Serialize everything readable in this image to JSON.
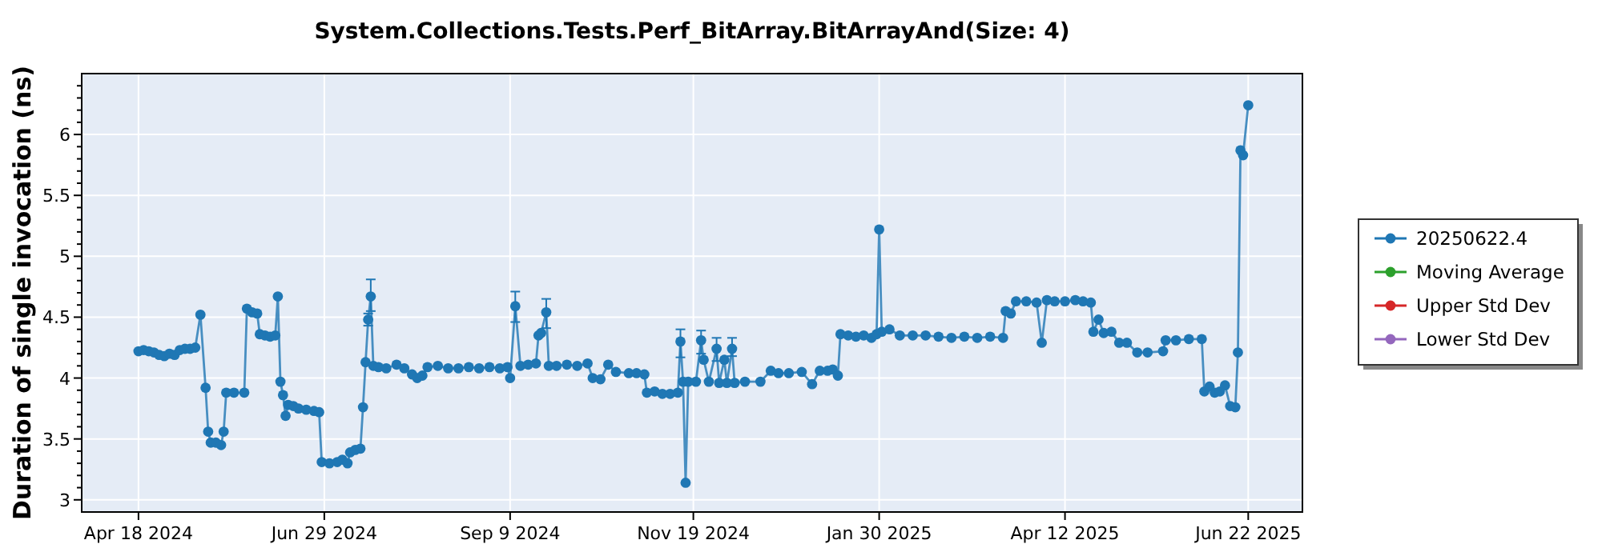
{
  "chart_data": {
    "type": "line",
    "title": "System.Collections.Tests.Perf_BitArray.BitArrayAnd(Size: 4)",
    "ylabel": "Duration of single invocation (ns)",
    "xlim": [
      "2024-03-27",
      "2025-07-13"
    ],
    "xticks": [
      {
        "value": "2024-04-18",
        "label": "Apr 18 2024"
      },
      {
        "value": "2024-06-29",
        "label": "Jun 29 2024"
      },
      {
        "value": "2024-09-09",
        "label": "Sep 9 2024"
      },
      {
        "value": "2024-11-19",
        "label": "Nov 19 2024"
      },
      {
        "value": "2025-01-30",
        "label": "Jan 30 2025"
      },
      {
        "value": "2025-04-12",
        "label": "Apr 12 2025"
      },
      {
        "value": "2025-06-22",
        "label": "Jun 22 2025"
      }
    ],
    "ylim": [
      2.9,
      6.5
    ],
    "yticks": [
      3,
      {
        "value": 3.1,
        "label": null
      },
      {
        "value": 3.2,
        "label": null
      },
      {
        "value": 3.3,
        "label": null
      },
      {
        "value": 3.4,
        "label": null
      },
      3.5,
      {
        "value": 3.6,
        "label": null
      },
      {
        "value": 3.7,
        "label": null
      },
      {
        "value": 3.8,
        "label": null
      },
      {
        "value": 3.9,
        "label": null
      },
      4,
      {
        "value": 4.1,
        "label": null
      },
      {
        "value": 4.2,
        "label": null
      },
      {
        "value": 4.3,
        "label": null
      },
      {
        "value": 4.4,
        "label": null
      },
      4.5,
      {
        "value": 4.6,
        "label": null
      },
      {
        "value": 4.7,
        "label": null
      },
      {
        "value": 4.8,
        "label": null
      },
      {
        "value": 4.9,
        "label": null
      },
      5,
      {
        "value": 5.1,
        "label": null
      },
      {
        "value": 5.2,
        "label": null
      },
      {
        "value": 5.3,
        "label": null
      },
      {
        "value": 5.4,
        "label": null
      },
      5.5,
      {
        "value": 5.6,
        "label": null
      },
      {
        "value": 5.7,
        "label": null
      },
      {
        "value": 5.8,
        "label": null
      },
      {
        "value": 5.9,
        "label": null
      },
      6,
      {
        "value": 6.1,
        "label": null
      },
      {
        "value": 6.2,
        "label": null
      },
      {
        "value": 6.3,
        "label": null
      },
      {
        "value": 6.4,
        "label": null
      }
    ],
    "grid": true,
    "legend": "right",
    "marker": "circle",
    "series": [
      {
        "name": "20250622.4",
        "color": "#1f77b4",
        "x": [
          "2024-04-18",
          "2024-04-20",
          "2024-04-22",
          "2024-04-24",
          "2024-04-26",
          "2024-04-28",
          "2024-04-30",
          "2024-05-02",
          "2024-05-04",
          "2024-05-06",
          "2024-05-08",
          "2024-05-10",
          "2024-05-12",
          "2024-05-14",
          "2024-05-15",
          "2024-05-16",
          "2024-05-18",
          "2024-05-20",
          "2024-05-21",
          "2024-05-22",
          "2024-05-25",
          "2024-05-29",
          "2024-05-30",
          "2024-06-01",
          "2024-06-03",
          "2024-06-04",
          "2024-06-06",
          "2024-06-08",
          "2024-06-10",
          "2024-06-11",
          "2024-06-12",
          "2024-06-13",
          "2024-06-14",
          "2024-06-15",
          "2024-06-17",
          "2024-06-19",
          "2024-06-22",
          "2024-06-25",
          "2024-06-27",
          "2024-06-28",
          "2024-07-01",
          "2024-07-04",
          "2024-07-06",
          "2024-07-08",
          "2024-07-09",
          "2024-07-11",
          "2024-07-13",
          "2024-07-14",
          "2024-07-15",
          "2024-07-16",
          "2024-07-17",
          "2024-07-18",
          "2024-07-20",
          "2024-07-23",
          "2024-07-27",
          "2024-07-30",
          "2024-08-02",
          "2024-08-04",
          "2024-08-06",
          "2024-08-08",
          "2024-08-12",
          "2024-08-16",
          "2024-08-20",
          "2024-08-24",
          "2024-08-28",
          "2024-09-01",
          "2024-09-05",
          "2024-09-08",
          "2024-09-09",
          "2024-09-11",
          "2024-09-13",
          "2024-09-16",
          "2024-09-19",
          "2024-09-20",
          "2024-09-21",
          "2024-09-23",
          "2024-09-24",
          "2024-09-27",
          "2024-10-01",
          "2024-10-05",
          "2024-10-09",
          "2024-10-11",
          "2024-10-14",
          "2024-10-17",
          "2024-10-20",
          "2024-10-25",
          "2024-10-28",
          "2024-10-31",
          "2024-11-01",
          "2024-11-04",
          "2024-11-07",
          "2024-11-10",
          "2024-11-13",
          "2024-11-14",
          "2024-11-15",
          "2024-11-16",
          "2024-11-17",
          "2024-11-20",
          "2024-11-22",
          "2024-11-23",
          "2024-11-25",
          "2024-11-28",
          "2024-11-29",
          "2024-12-01",
          "2024-12-02",
          "2024-12-04",
          "2024-12-05",
          "2024-12-09",
          "2024-12-15",
          "2024-12-19",
          "2024-12-22",
          "2024-12-26",
          "2024-12-31",
          "2025-01-04",
          "2025-01-07",
          "2025-01-10",
          "2025-01-12",
          "2025-01-14",
          "2025-01-15",
          "2025-01-18",
          "2025-01-21",
          "2025-01-24",
          "2025-01-27",
          "2025-01-29",
          "2025-01-30",
          "2025-01-31",
          "2025-02-03",
          "2025-02-07",
          "2025-02-12",
          "2025-02-17",
          "2025-02-22",
          "2025-02-27",
          "2025-03-04",
          "2025-03-09",
          "2025-03-14",
          "2025-03-19",
          "2025-03-20",
          "2025-03-22",
          "2025-03-24",
          "2025-03-28",
          "2025-04-01",
          "2025-04-03",
          "2025-04-05",
          "2025-04-08",
          "2025-04-12",
          "2025-04-16",
          "2025-04-19",
          "2025-04-22",
          "2025-04-23",
          "2025-04-25",
          "2025-04-27",
          "2025-04-30",
          "2025-05-03",
          "2025-05-06",
          "2025-05-10",
          "2025-05-14",
          "2025-05-20",
          "2025-05-21",
          "2025-05-25",
          "2025-05-30",
          "2025-06-04",
          "2025-06-05",
          "2025-06-07",
          "2025-06-09",
          "2025-06-11",
          "2025-06-13",
          "2025-06-15",
          "2025-06-17",
          "2025-06-18",
          "2025-06-19",
          "2025-06-20",
          "2025-06-22"
        ],
        "values": [
          4.22,
          4.23,
          4.22,
          4.21,
          4.19,
          4.18,
          4.2,
          4.19,
          4.23,
          4.24,
          4.24,
          4.25,
          4.52,
          3.92,
          3.56,
          3.47,
          3.47,
          3.45,
          3.56,
          3.88,
          3.88,
          3.88,
          4.57,
          4.54,
          4.53,
          4.36,
          4.35,
          4.34,
          4.35,
          4.67,
          3.97,
          3.86,
          3.69,
          3.78,
          3.77,
          3.75,
          3.74,
          3.73,
          3.72,
          3.31,
          3.3,
          3.31,
          3.33,
          3.3,
          3.39,
          3.41,
          3.42,
          3.76,
          4.13,
          4.48,
          4.67,
          4.1,
          4.09,
          4.08,
          4.11,
          4.08,
          4.03,
          4,
          4.02,
          4.09,
          4.1,
          4.08,
          4.08,
          4.09,
          4.08,
          4.09,
          4.08,
          4.09,
          4,
          4.59,
          4.1,
          4.11,
          4.12,
          4.35,
          4.37,
          4.54,
          4.1,
          4.1,
          4.11,
          4.1,
          4.12,
          4,
          3.99,
          4.11,
          4.05,
          4.04,
          4.04,
          4.03,
          3.88,
          3.89,
          3.87,
          3.87,
          3.88,
          4.3,
          3.97,
          3.14,
          3.97,
          3.97,
          4.31,
          4.15,
          3.97,
          4.24,
          3.96,
          4.15,
          3.96,
          4.24,
          3.96,
          3.97,
          3.97,
          4.06,
          4.04,
          4.04,
          4.05,
          3.95,
          4.06,
          4.06,
          4.07,
          4.02,
          4.36,
          4.35,
          4.34,
          4.35,
          4.33,
          4.36,
          5.22,
          4.38,
          4.4,
          4.35,
          4.35,
          4.35,
          4.34,
          4.33,
          4.34,
          4.33,
          4.34,
          4.33,
          4.55,
          4.53,
          4.63,
          4.63,
          4.62,
          4.29,
          4.64,
          4.63,
          4.63,
          4.64,
          4.63,
          4.62,
          4.38,
          4.48,
          4.37,
          4.38,
          4.29,
          4.29,
          4.21,
          4.21,
          4.22,
          4.31,
          4.31,
          4.32,
          4.32,
          3.89,
          3.93,
          3.88,
          3.89,
          3.94,
          3.77,
          3.76,
          4.21,
          5.87,
          5.83,
          6.24
        ],
        "errors": [
          null,
          null,
          null,
          null,
          null,
          null,
          null,
          null,
          null,
          null,
          null,
          null,
          null,
          null,
          null,
          null,
          null,
          null,
          null,
          null,
          null,
          null,
          null,
          null,
          null,
          null,
          null,
          null,
          null,
          null,
          null,
          null,
          null,
          null,
          null,
          null,
          null,
          null,
          null,
          null,
          null,
          null,
          null,
          null,
          null,
          null,
          null,
          null,
          null,
          [
            4.43,
            4.53
          ],
          [
            4.55,
            4.81
          ],
          null,
          null,
          null,
          null,
          null,
          null,
          null,
          null,
          null,
          null,
          null,
          null,
          null,
          null,
          null,
          null,
          null,
          null,
          [
            4.46,
            4.71
          ],
          null,
          null,
          null,
          null,
          null,
          [
            4.41,
            4.65
          ],
          null,
          null,
          null,
          null,
          null,
          null,
          null,
          null,
          null,
          null,
          null,
          null,
          null,
          null,
          null,
          null,
          null,
          [
            4.17,
            4.4
          ],
          null,
          null,
          null,
          null,
          [
            4.2,
            4.39
          ],
          null,
          null,
          [
            4.14,
            4.33
          ],
          null,
          null,
          null,
          [
            4.18,
            4.33
          ],
          null,
          null,
          null,
          null,
          null,
          null,
          null,
          null,
          null,
          null,
          null,
          null,
          null,
          null,
          null,
          null,
          null,
          null,
          null,
          null,
          null,
          null,
          null,
          null,
          null,
          null,
          null,
          null,
          null,
          null,
          null,
          null,
          null,
          null,
          null,
          null,
          null,
          null,
          null,
          null,
          null,
          null,
          null,
          null,
          null,
          null,
          null,
          null,
          null,
          null,
          null,
          null,
          null,
          null,
          null,
          null,
          null,
          null,
          null,
          null,
          null,
          null,
          null,
          null,
          null,
          null
        ]
      },
      {
        "name": "Moving Average",
        "color": "#2ca02c"
      },
      {
        "name": "Upper Std Dev",
        "color": "#d62728"
      },
      {
        "name": "Lower Std Dev",
        "color": "#9467bd"
      }
    ]
  }
}
